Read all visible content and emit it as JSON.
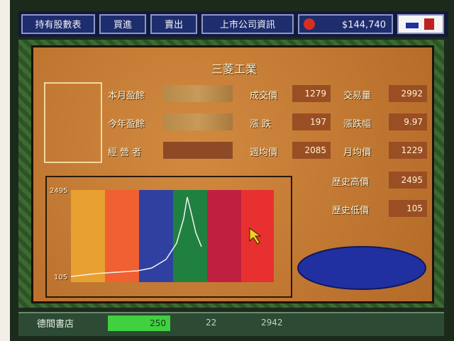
{
  "top_bar": {
    "buttons": [
      "持有股數表",
      "買進",
      "賣出",
      "上市公司資訊"
    ],
    "money": "$144,740"
  },
  "panel": {
    "title": "三菱工業",
    "labels": [
      "本月盈餘",
      "今年盈餘",
      "經 營 者"
    ],
    "stats": [
      {
        "label": "成交價",
        "value": "1279"
      },
      {
        "label": "交易量",
        "value": "2992"
      },
      {
        "label": "漲 跌",
        "value": "197"
      },
      {
        "label": "漲跌幅",
        "value": "9.97"
      },
      {
        "label": "週均價",
        "value": "2085"
      },
      {
        "label": "月均價",
        "value": "1229"
      },
      {
        "label": "歷史高價",
        "value": "2495"
      },
      {
        "label": "歷史低價",
        "value": "105"
      }
    ],
    "chart": {
      "y_top": "2495",
      "y_bottom": "105"
    }
  },
  "status_bar": {
    "company": "德間書店",
    "values": [
      "250",
      "22",
      "2942"
    ]
  }
}
